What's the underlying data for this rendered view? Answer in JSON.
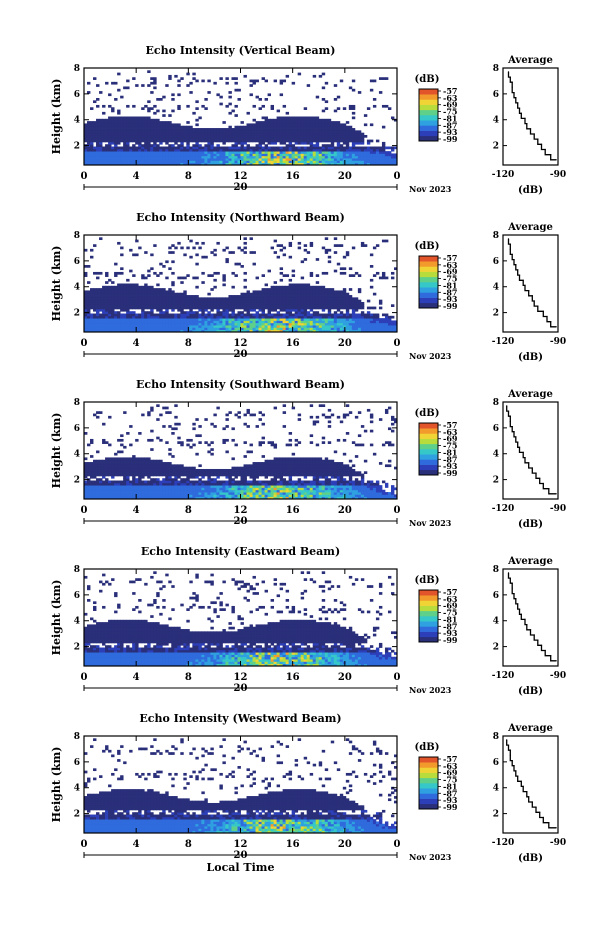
{
  "figure": {
    "x_axis_title": "Local Time",
    "date_label": "Nov 2023",
    "day_label": "20",
    "colorbar_unit": "(dB)",
    "colorbar_ticks": [
      "-57",
      "-63",
      "-69",
      "-75",
      "-81",
      "-87",
      "-93",
      "-99"
    ],
    "colorbar_colors": [
      "#2a2f7a",
      "#2c3fb8",
      "#2f6bdc",
      "#2fa0e0",
      "#36c8c8",
      "#5fd08a",
      "#b7dc3c",
      "#f0d335",
      "#f39a2c",
      "#e2542a"
    ],
    "no_data_color": "#ffffff"
  },
  "chart_data": [
    {
      "type": "heatmap",
      "title": "Echo Intensity (Vertical Beam)",
      "xlabel": "",
      "ylabel": "Height (km)",
      "x_ticks": [
        "0",
        "4",
        "8",
        "12",
        "16",
        "20",
        "0"
      ],
      "y_ticks": [
        "2",
        "4",
        "6",
        "8"
      ],
      "xlim": [
        0,
        24
      ],
      "ylim": [
        0.5,
        8
      ],
      "colorbar": {
        "unit": "(dB)",
        "range": [
          -99,
          -57
        ]
      },
      "dense_top_km": 3.8,
      "scatter_top_km": 7.8,
      "profile": {
        "title": "Average",
        "xlabel": "(dB)",
        "x_ticks": [
          "-120",
          "-90"
        ],
        "y_ticks": [
          "2",
          "4",
          "6",
          "8"
        ],
        "xlim": [
          -120,
          -90
        ],
        "ylim": [
          0.5,
          8
        ],
        "points": [
          [
            -91,
            0.9
          ],
          [
            -94,
            1.3
          ],
          [
            -97,
            1.7
          ],
          [
            -99,
            2.1
          ],
          [
            -101,
            2.5
          ],
          [
            -103,
            2.9
          ],
          [
            -105,
            3.3
          ],
          [
            -107,
            3.7
          ],
          [
            -108,
            4.1
          ],
          [
            -110,
            4.5
          ],
          [
            -111,
            4.9
          ],
          [
            -112,
            5.3
          ],
          [
            -113,
            5.7
          ],
          [
            -114,
            6.1
          ],
          [
            -115,
            6.5
          ],
          [
            -115,
            6.9
          ],
          [
            -116,
            7.3
          ],
          [
            -117,
            7.7
          ]
        ]
      }
    },
    {
      "type": "heatmap",
      "title": "Echo Intensity (Northward Beam)",
      "xlabel": "",
      "ylabel": "Height (km)",
      "x_ticks": [
        "0",
        "4",
        "8",
        "12",
        "16",
        "20",
        "0"
      ],
      "y_ticks": [
        "2",
        "4",
        "6",
        "8"
      ],
      "xlim": [
        0,
        24
      ],
      "ylim": [
        0.5,
        8
      ],
      "colorbar": {
        "unit": "(dB)",
        "range": [
          -99,
          -57
        ]
      },
      "dense_top_km": 3.7,
      "scatter_top_km": 7.8,
      "profile": {
        "title": "Average",
        "xlabel": "(dB)",
        "x_ticks": [
          "-120",
          "-90"
        ],
        "y_ticks": [
          "2",
          "4",
          "6",
          "8"
        ],
        "xlim": [
          -120,
          -90
        ],
        "ylim": [
          0.5,
          8
        ],
        "points": [
          [
            -91,
            0.9
          ],
          [
            -94,
            1.3
          ],
          [
            -96,
            1.7
          ],
          [
            -98,
            2.1
          ],
          [
            -101,
            2.5
          ],
          [
            -103,
            2.9
          ],
          [
            -104,
            3.3
          ],
          [
            -106,
            3.7
          ],
          [
            -108,
            4.1
          ],
          [
            -109,
            4.5
          ],
          [
            -111,
            4.9
          ],
          [
            -112,
            5.3
          ],
          [
            -113,
            5.7
          ],
          [
            -114,
            6.1
          ],
          [
            -115,
            6.5
          ],
          [
            -116,
            6.9
          ],
          [
            -116,
            7.3
          ],
          [
            -117,
            7.7
          ]
        ]
      }
    },
    {
      "type": "heatmap",
      "title": "Echo Intensity (Southward Beam)",
      "xlabel": "",
      "ylabel": "Height (km)",
      "x_ticks": [
        "0",
        "4",
        "8",
        "12",
        "16",
        "20",
        "0"
      ],
      "y_ticks": [
        "2",
        "4",
        "6",
        "8"
      ],
      "xlim": [
        0,
        24
      ],
      "ylim": [
        0.5,
        8
      ],
      "colorbar": {
        "unit": "(dB)",
        "range": [
          -99,
          -57
        ]
      },
      "dense_top_km": 3.3,
      "scatter_top_km": 7.8,
      "profile": {
        "title": "Average",
        "xlabel": "(dB)",
        "x_ticks": [
          "-120",
          "-90"
        ],
        "y_ticks": [
          "2",
          "4",
          "6",
          "8"
        ],
        "xlim": [
          -120,
          -90
        ],
        "ylim": [
          0.5,
          8
        ],
        "points": [
          [
            -91,
            0.9
          ],
          [
            -95,
            1.3
          ],
          [
            -98,
            1.7
          ],
          [
            -100,
            2.1
          ],
          [
            -102,
            2.5
          ],
          [
            -104,
            2.9
          ],
          [
            -106,
            3.3
          ],
          [
            -108,
            3.7
          ],
          [
            -109,
            4.1
          ],
          [
            -111,
            4.5
          ],
          [
            -112,
            4.9
          ],
          [
            -113,
            5.3
          ],
          [
            -114,
            5.7
          ],
          [
            -115,
            6.1
          ],
          [
            -116,
            6.5
          ],
          [
            -116,
            6.9
          ],
          [
            -117,
            7.3
          ],
          [
            -118,
            7.7
          ]
        ]
      }
    },
    {
      "type": "heatmap",
      "title": "Echo Intensity (Eastward Beam)",
      "xlabel": "",
      "ylabel": "Height (km)",
      "x_ticks": [
        "0",
        "4",
        "8",
        "12",
        "16",
        "20",
        "0"
      ],
      "y_ticks": [
        "2",
        "4",
        "6",
        "8"
      ],
      "xlim": [
        0,
        24
      ],
      "ylim": [
        0.5,
        8
      ],
      "colorbar": {
        "unit": "(dB)",
        "range": [
          -99,
          -57
        ]
      },
      "dense_top_km": 3.6,
      "scatter_top_km": 7.8,
      "profile": {
        "title": "Average",
        "xlabel": "(dB)",
        "x_ticks": [
          "-120",
          "-90"
        ],
        "y_ticks": [
          "2",
          "4",
          "6",
          "8"
        ],
        "xlim": [
          -120,
          -90
        ],
        "ylim": [
          0.5,
          8
        ],
        "points": [
          [
            -91,
            0.9
          ],
          [
            -94,
            1.3
          ],
          [
            -97,
            1.7
          ],
          [
            -99,
            2.1
          ],
          [
            -101,
            2.5
          ],
          [
            -103,
            2.9
          ],
          [
            -105,
            3.3
          ],
          [
            -107,
            3.7
          ],
          [
            -108,
            4.1
          ],
          [
            -110,
            4.5
          ],
          [
            -111,
            4.9
          ],
          [
            -112,
            5.3
          ],
          [
            -113,
            5.7
          ],
          [
            -114,
            6.1
          ],
          [
            -115,
            6.5
          ],
          [
            -115,
            6.9
          ],
          [
            -116,
            7.3
          ],
          [
            -117,
            7.7
          ]
        ]
      }
    },
    {
      "type": "heatmap",
      "title": "Echo Intensity (Westward Beam)",
      "xlabel": "Local Time",
      "ylabel": "Height (km)",
      "x_ticks": [
        "0",
        "4",
        "8",
        "12",
        "16",
        "20",
        "0"
      ],
      "y_ticks": [
        "2",
        "4",
        "6",
        "8"
      ],
      "xlim": [
        0,
        24
      ],
      "ylim": [
        0.5,
        8
      ],
      "colorbar": {
        "unit": "(dB)",
        "range": [
          -99,
          -57
        ]
      },
      "dense_top_km": 3.4,
      "scatter_top_km": 7.8,
      "profile": {
        "title": "Average",
        "xlabel": "(dB)",
        "x_ticks": [
          "-120",
          "-90"
        ],
        "y_ticks": [
          "2",
          "4",
          "6",
          "8"
        ],
        "xlim": [
          -120,
          -90
        ],
        "ylim": [
          0.5,
          8
        ],
        "points": [
          [
            -91,
            0.9
          ],
          [
            -95,
            1.3
          ],
          [
            -98,
            1.7
          ],
          [
            -100,
            2.1
          ],
          [
            -102,
            2.5
          ],
          [
            -104,
            2.9
          ],
          [
            -106,
            3.3
          ],
          [
            -107,
            3.7
          ],
          [
            -109,
            4.1
          ],
          [
            -110,
            4.5
          ],
          [
            -112,
            4.9
          ],
          [
            -113,
            5.3
          ],
          [
            -114,
            5.7
          ],
          [
            -115,
            6.1
          ],
          [
            -116,
            6.5
          ],
          [
            -116,
            6.9
          ],
          [
            -117,
            7.3
          ],
          [
            -118,
            7.7
          ]
        ]
      }
    }
  ]
}
